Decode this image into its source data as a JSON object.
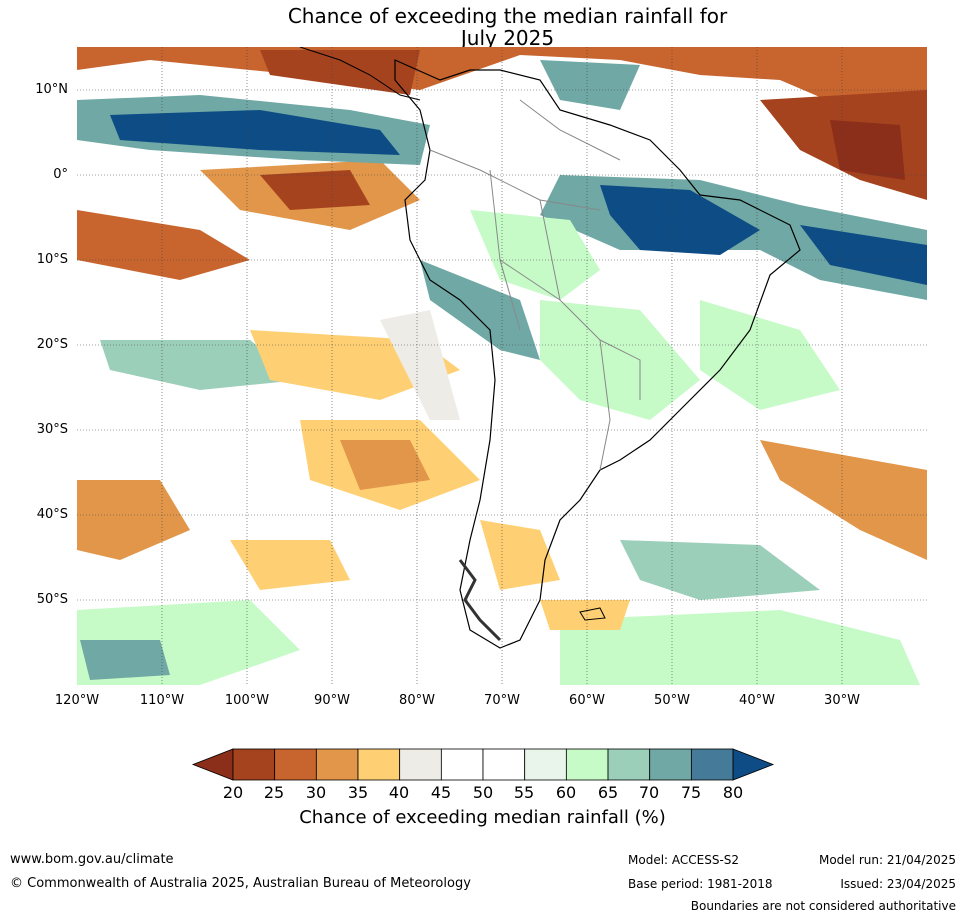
{
  "title": {
    "line1": "Chance of exceeding the median rainfall for",
    "line2": "July 2025"
  },
  "map": {
    "lat_labels": [
      "10°N",
      "0°",
      "10°S",
      "20°S",
      "30°S",
      "40°S",
      "50°S"
    ],
    "lon_labels": [
      "120°W",
      "110°W",
      "100°W",
      "90°W",
      "80°W",
      "70°W",
      "60°W",
      "50°W",
      "40°W",
      "30°W"
    ]
  },
  "colorbar": {
    "ticks": [
      "20",
      "25",
      "30",
      "35",
      "40",
      "45",
      "50",
      "55",
      "60",
      "65",
      "70",
      "75",
      "80"
    ],
    "colors": [
      "#8b2e1a",
      "#a6431f",
      "#c8652e",
      "#e1964a",
      "#ffd073",
      "#eeece6",
      "#ffffff",
      "#ffffff",
      "#e9f5ea",
      "#c6fbc8",
      "#9bcfba",
      "#6fa8a4",
      "#457a98",
      "#0e4c86"
    ],
    "title": "Chance of exceeding median rainfall (%)"
  },
  "footer": {
    "website": "www.bom.gov.au/climate",
    "copyright": "© Commonwealth of Australia 2025, Australian Bureau of Meteorology",
    "model": "Model: ACCESS-S2",
    "base_period": "Base period: 1981-2018",
    "model_run": "Model run: 21/04/2025",
    "issued": "Issued: 23/04/2025",
    "disclaimer": "Boundaries are not considered authoritative"
  }
}
